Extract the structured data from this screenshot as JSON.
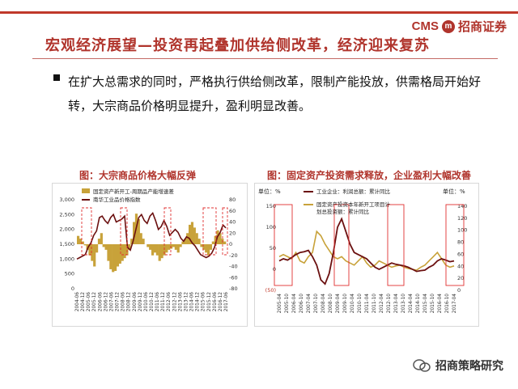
{
  "header": {
    "logo_text": "CMS",
    "logo_seal": "m",
    "logo_name": "招商证券"
  },
  "slide": {
    "title": "宏观经济展望—投资再起叠加供给侧改革，经济迎来复苏",
    "bullet_text": "在扩大总需求的同时，严格执行供给侧改革，限制产能投放，供需格局开始好转，大宗商品价格明显提升，盈利明显改善。"
  },
  "left_figure": {
    "caption": "图：大宗商品价格大幅反弹",
    "legend": [
      "固定资产新开工-周期品产能增速差",
      "南华工业品价格指数"
    ],
    "colors": {
      "bar": "#c8a23a",
      "line": "#6b1010",
      "highlight": "#e03030"
    },
    "y_left_ticks": [
      "3,000",
      "2,500",
      "2,000",
      "1,500",
      "1,000",
      "500",
      "0"
    ],
    "y_right_ticks": [
      "80",
      "60",
      "40",
      "20",
      "0",
      "-20",
      "-40",
      "-60",
      "-80"
    ],
    "x_ticks": [
      "2004-06",
      "2004-12",
      "2005-06",
      "2005-12",
      "2006-06",
      "2006-12",
      "2007-06",
      "2007-12",
      "2008-06",
      "2008-12",
      "2009-06",
      "2009-12",
      "2010-06",
      "2010-12",
      "2011-06",
      "2011-12",
      "2012-06",
      "2012-12",
      "2013-06",
      "2013-12",
      "2014-06",
      "2014-12",
      "2015-06",
      "2015-12",
      "2016-06",
      "2016-12",
      "2017-06"
    ]
  },
  "right_figure": {
    "caption": "图：固定资产投资需求释放，企业盈利大幅改善",
    "unit_left": "单位：%",
    "unit_right": "单位：%",
    "legend": [
      "工业企业：利润总额：累计同比",
      "固定资产投资本年新开工项目计划总投资额：累计同比"
    ],
    "colors": {
      "line1": "#6b1010",
      "line2": "#c8a23a",
      "highlight": "#e03030"
    },
    "y_left_ticks": [
      "150",
      "100",
      "50",
      "0",
      "(50)"
    ],
    "y_right_ticks": [
      "140",
      "120",
      "100",
      "80",
      "60",
      "40",
      "20",
      "0"
    ],
    "x_ticks": [
      "2005-04",
      "2005-10",
      "2006-04",
      "2006-10",
      "2007-04",
      "2007-10",
      "2008-04",
      "2008-10",
      "2009-04",
      "2009-10",
      "2010-04",
      "2010-10",
      "2011-04",
      "2011-10",
      "2012-04",
      "2012-10",
      "2013-04",
      "2013-10",
      "2014-04",
      "2014-10",
      "2015-04",
      "2015-10",
      "2016-04",
      "2016-10",
      "2017-04"
    ]
  },
  "watermark": {
    "text": "招商策略研究"
  }
}
